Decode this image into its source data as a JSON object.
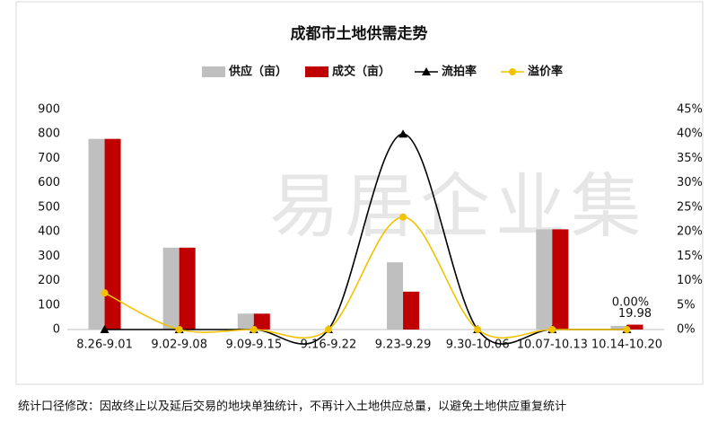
{
  "chart_data": {
    "type": "bar-line",
    "title": "成都市土地供需走势",
    "watermark": "易居企业集",
    "categories": [
      "8.26-9.01",
      "9.02-9.08",
      "9.09-9.15",
      "9.16-9.22",
      "9.23-9.29",
      "9.30-10.06",
      "10.07-10.13",
      "10.14-10.20"
    ],
    "series": [
      {
        "name": "供应（亩）",
        "kind": "bar",
        "color": "#bfbfbf",
        "values": [
          780,
          335,
          65,
          0,
          275,
          0,
          410,
          15
        ]
      },
      {
        "name": "成交（亩）",
        "kind": "bar",
        "color": "#c00000",
        "values": [
          780,
          335,
          65,
          0,
          155,
          0,
          410,
          19.98
        ],
        "value_labels": [
          null,
          null,
          null,
          null,
          null,
          null,
          null,
          "19.98"
        ]
      },
      {
        "name": "流拍率",
        "kind": "line",
        "marker": "triangle",
        "axis": "y2",
        "color": "#000000",
        "values": [
          0,
          0,
          0,
          0,
          40,
          0,
          0,
          0
        ]
      },
      {
        "name": "溢价率",
        "kind": "line",
        "marker": "circle",
        "axis": "y2",
        "color": "#f2c200",
        "values": [
          7.5,
          0,
          0,
          0,
          23,
          0,
          0,
          0
        ],
        "value_labels": [
          null,
          null,
          null,
          null,
          null,
          null,
          null,
          "0.00%"
        ]
      }
    ],
    "ylim": [
      0,
      900
    ],
    "yticks": [
      0,
      100,
      200,
      300,
      400,
      500,
      600,
      700,
      800,
      900
    ],
    "y2lim": [
      0,
      45
    ],
    "y2ticks": [
      {
        "value": 0,
        "label": "0%"
      },
      {
        "value": 5,
        "label": "5%"
      },
      {
        "value": 10,
        "label": "10%"
      },
      {
        "value": 15,
        "label": "15%"
      },
      {
        "value": 20,
        "label": "20%"
      },
      {
        "value": 25,
        "label": "25%"
      },
      {
        "value": 30,
        "label": "30%"
      },
      {
        "value": 35,
        "label": "35%"
      },
      {
        "value": 40,
        "label": "40%"
      },
      {
        "value": 45,
        "label": "45%"
      }
    ],
    "legend": "top",
    "note": "统计口径修改：因故终止以及延后交易的地块单独统计，不再计入土地供应总量，以避免土地供应重复统计"
  }
}
